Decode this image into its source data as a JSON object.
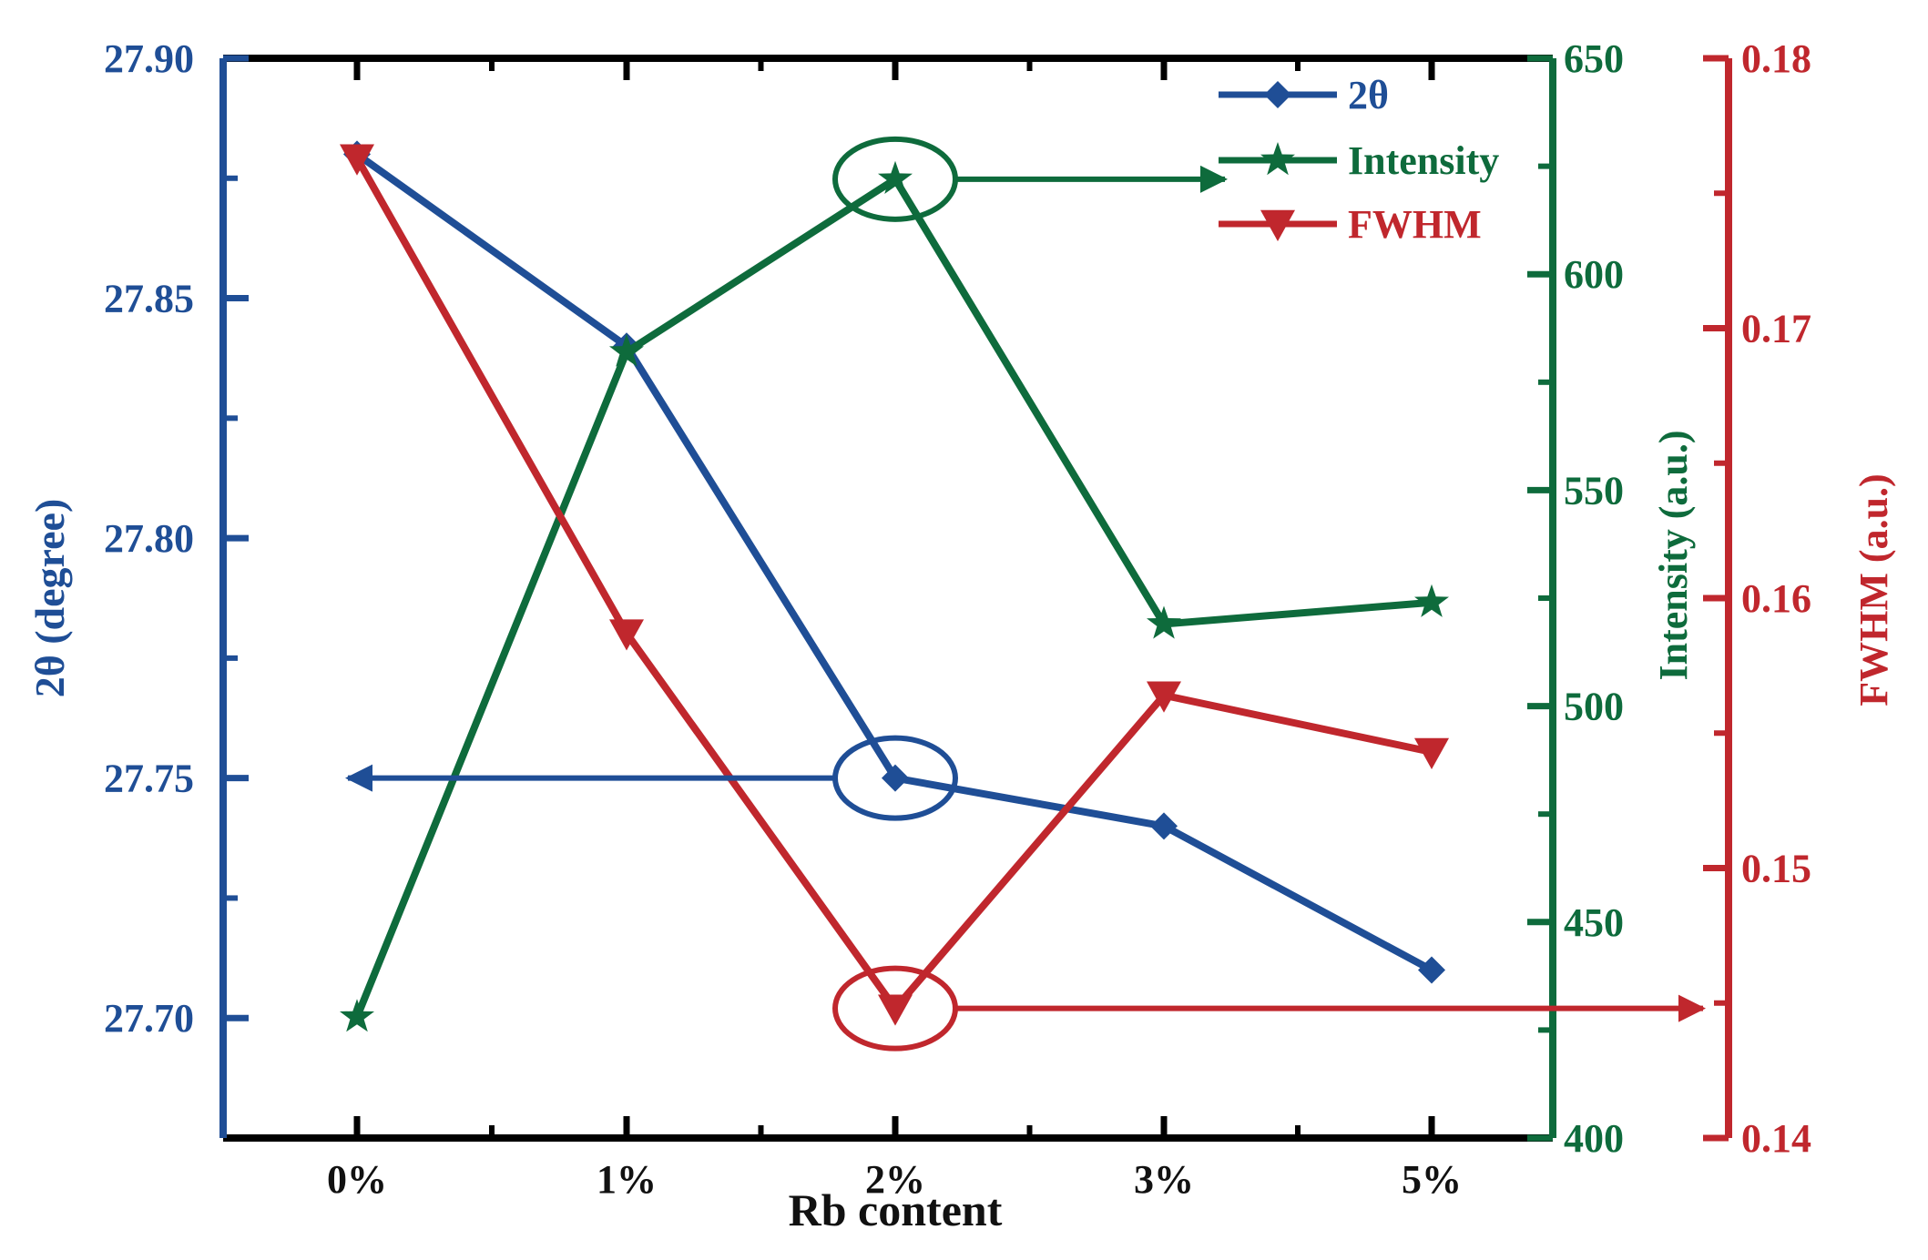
{
  "chart_data": {
    "type": "line",
    "xlabel": "Rb content",
    "categories": [
      "0%",
      "1%",
      "2%",
      "3%",
      "5%"
    ],
    "axes": {
      "left": {
        "label": "2θ (degree)",
        "ylim": [
          27.675,
          27.9
        ],
        "ticks": [
          "27.70",
          "27.75",
          "27.80",
          "27.85",
          "27.90"
        ],
        "tick_values": [
          27.7,
          27.75,
          27.8,
          27.85,
          27.9
        ],
        "color": "#1f4e96"
      },
      "right1": {
        "label": "Intensity (a.u.)",
        "ylim": [
          400,
          650
        ],
        "ticks": [
          "400",
          "450",
          "500",
          "550",
          "600",
          "650"
        ],
        "tick_values": [
          400,
          450,
          500,
          550,
          600,
          650
        ],
        "color": "#0e6b3c"
      },
      "right2": {
        "label": "FWHM (a.u.)",
        "ylim": [
          0.14,
          0.18
        ],
        "ticks": [
          "0.14",
          "0.15",
          "0.16",
          "0.17",
          "0.18"
        ],
        "tick_values": [
          0.14,
          0.15,
          0.16,
          0.17,
          0.18
        ],
        "color": "#c0272d"
      }
    },
    "series": [
      {
        "name": "2θ",
        "axis": "left",
        "marker": "diamond",
        "color": "#1f4e96",
        "values": [
          27.88,
          27.84,
          27.75,
          27.74,
          27.71
        ]
      },
      {
        "name": "Intensity",
        "axis": "right1",
        "marker": "star",
        "color": "#0e6b3c",
        "values": [
          428,
          582,
          622,
          519,
          524
        ]
      },
      {
        "name": "FWHM",
        "axis": "right2",
        "marker": "triangle-down",
        "color": "#c0272d",
        "values": [
          0.1763,
          0.1587,
          0.1448,
          0.1564,
          0.1543
        ]
      }
    ],
    "annotations": [
      {
        "series": "2θ",
        "category": "2%",
        "arrow_to": "left"
      },
      {
        "series": "Intensity",
        "category": "2%",
        "arrow_to": "right"
      },
      {
        "series": "FWHM",
        "category": "2%",
        "arrow_to": "right"
      }
    ],
    "legend": "top-right",
    "grid": false
  }
}
